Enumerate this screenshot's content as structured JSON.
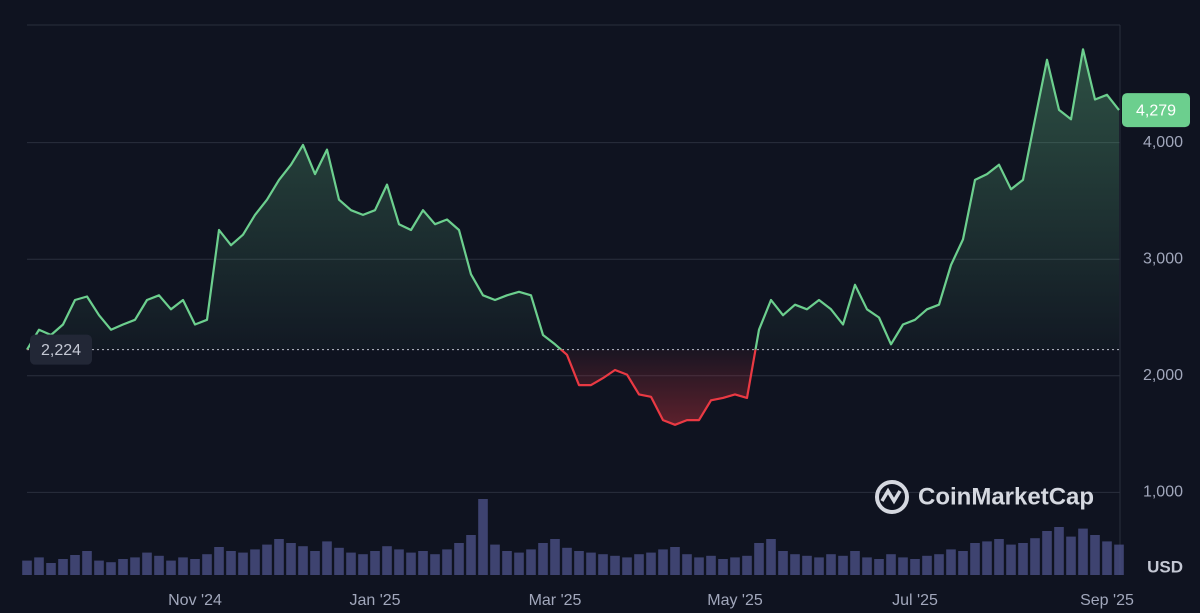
{
  "chart_data": {
    "type": "line",
    "categories": [
      null,
      null,
      null,
      null,
      null,
      null,
      null,
      null,
      null,
      null,
      null,
      null,
      null,
      null,
      "Nov '24",
      null,
      null,
      null,
      null,
      null,
      null,
      null,
      null,
      null,
      null,
      null,
      null,
      null,
      null,
      "Jan '25",
      null,
      null,
      null,
      null,
      null,
      null,
      null,
      null,
      null,
      null,
      null,
      null,
      null,
      null,
      "Mar '25",
      null,
      null,
      null,
      null,
      null,
      null,
      null,
      null,
      null,
      null,
      null,
      null,
      null,
      null,
      "May '25",
      null,
      null,
      null,
      null,
      null,
      null,
      null,
      null,
      null,
      null,
      null,
      null,
      null,
      null,
      "Jul '25",
      null,
      null,
      null,
      null,
      null,
      null,
      null,
      null,
      null,
      null,
      null,
      null,
      null,
      null,
      null,
      "Sep '25",
      null
    ],
    "values": [
      2224,
      2395,
      2350,
      2440,
      2650,
      2680,
      2520,
      2395,
      2440,
      2480,
      2650,
      2690,
      2570,
      2650,
      2440,
      2480,
      3250,
      3120,
      3210,
      3380,
      3510,
      3680,
      3810,
      3980,
      3730,
      3940,
      3510,
      3420,
      3380,
      3420,
      3640,
      3300,
      3250,
      3420,
      3300,
      3340,
      3250,
      2870,
      2690,
      2650,
      2690,
      2720,
      2690,
      2350,
      2270,
      2180,
      1920,
      1920,
      1980,
      2050,
      2010,
      1840,
      1820,
      1620,
      1580,
      1620,
      1620,
      1790,
      1810,
      1840,
      1810,
      2395,
      2650,
      2520,
      2610,
      2570,
      2650,
      2570,
      2440,
      2780,
      2570,
      2500,
      2270,
      2440,
      2480,
      2570,
      2610,
      2950,
      3170,
      3680,
      3730,
      3810,
      3600,
      3680,
      4200,
      4710,
      4280,
      4200,
      4800,
      4370,
      4410,
      4279
    ],
    "color": "#6ccf8e",
    "down_color": "#ea3943",
    "volume": {
      "color": "#4a5084",
      "values": [
        18,
        22,
        15,
        20,
        25,
        30,
        18,
        16,
        20,
        22,
        28,
        24,
        18,
        22,
        20,
        26,
        35,
        30,
        28,
        32,
        38,
        45,
        40,
        36,
        30,
        42,
        34,
        28,
        26,
        30,
        36,
        32,
        28,
        30,
        26,
        32,
        40,
        50,
        95,
        38,
        30,
        28,
        32,
        40,
        45,
        34,
        30,
        28,
        26,
        24,
        22,
        26,
        28,
        32,
        35,
        26,
        22,
        24,
        20,
        22,
        24,
        40,
        45,
        30,
        26,
        24,
        22,
        26,
        24,
        30,
        22,
        20,
        26,
        22,
        20,
        24,
        26,
        32,
        30,
        40,
        42,
        45,
        38,
        40,
        46,
        55,
        60,
        48,
        58,
        50,
        42,
        38
      ]
    },
    "y2lim": [
      0,
      100
    ],
    "ylim": [
      300,
      5000
    ],
    "yticks": [
      {
        "value": 1000,
        "label": "1,000"
      },
      {
        "value": 2000,
        "label": "2,000"
      },
      {
        "value": 3000,
        "label": "3,000"
      },
      {
        "value": 4000,
        "label": "4,000"
      }
    ],
    "grid": true,
    "baseline": {
      "value": 2224,
      "label": "2,224"
    },
    "last_price": {
      "value": 4279,
      "label": "4,279"
    },
    "currency": "USD",
    "watermark": "CoinMarketCap"
  }
}
